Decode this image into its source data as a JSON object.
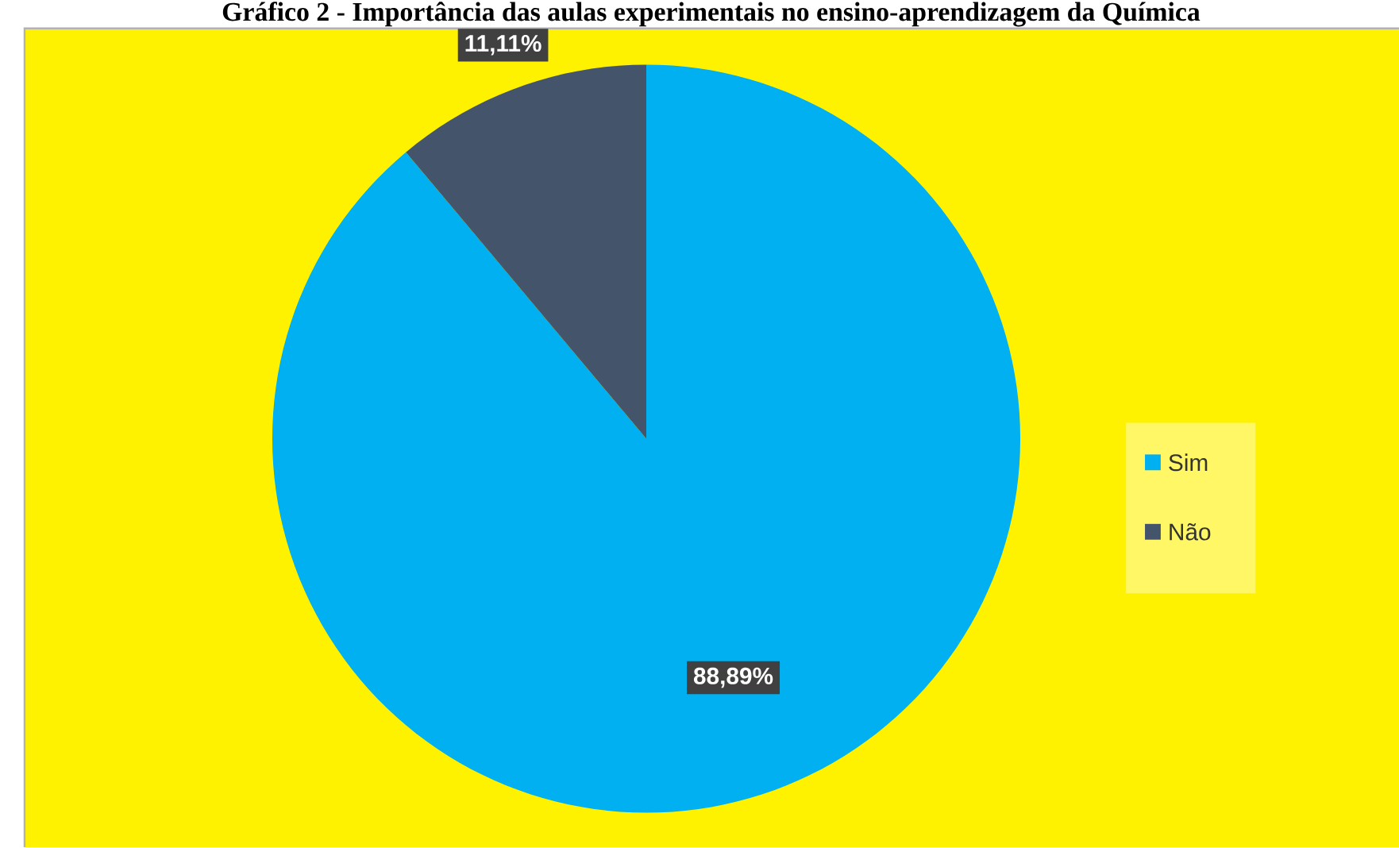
{
  "chart_data": {
    "type": "pie",
    "title": "Gráfico 2 - Importância das aulas experimentais no ensino-aprendizagem da Química",
    "categories": [
      "Sim",
      "Não"
    ],
    "values": [
      88.89,
      11.11
    ],
    "value_labels": [
      "88,89%",
      "11,11%"
    ],
    "colors": [
      "#00b0f0",
      "#44546a"
    ],
    "legend": "right"
  }
}
